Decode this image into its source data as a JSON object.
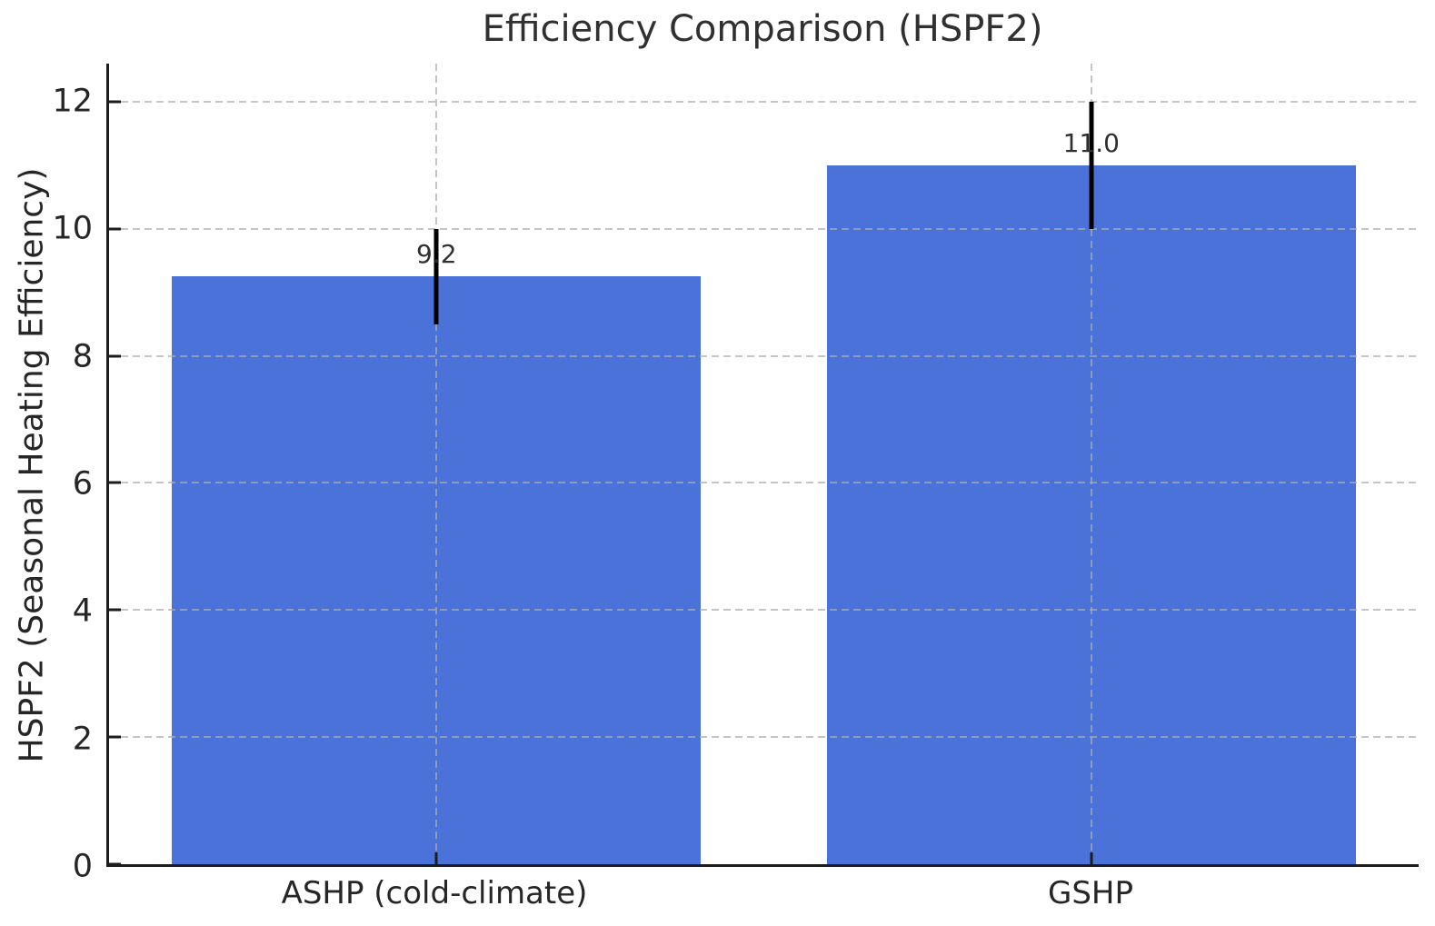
{
  "chart_data": {
    "type": "bar",
    "title": "Efficiency Comparison (HSPF2)",
    "xlabel": "",
    "ylabel": "HSPF2 (Seasonal Heating Efficiency)",
    "categories": [
      "ASHP (cold-climate)",
      "GSHP"
    ],
    "values": [
      9.25,
      11.0
    ],
    "errors": [
      0.75,
      1.0
    ],
    "bar_labels": [
      "9.2",
      "11.0"
    ],
    "yticks": [
      0,
      2,
      4,
      6,
      8,
      10,
      12
    ],
    "ylim": [
      0,
      12.6
    ],
    "legend": "none",
    "grid": {
      "visible": true,
      "style": "dashed",
      "axes": "both",
      "drawn_over_bars": true
    },
    "colors": {
      "bar": "#4a72d9",
      "error_bar": "#000000",
      "grid": "#c9c9c9",
      "spine": "#1c1c1c",
      "text": "#262626",
      "background": "#ffffff"
    }
  }
}
